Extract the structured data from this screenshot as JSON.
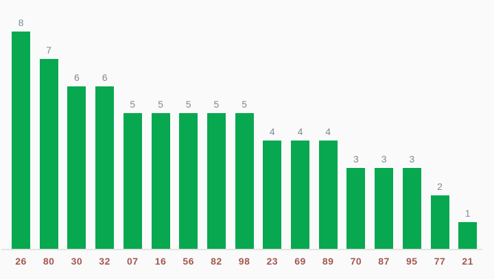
{
  "chart_data": {
    "type": "bar",
    "title": "",
    "xlabel": "",
    "ylabel": "",
    "categories": [
      "26",
      "80",
      "30",
      "32",
      "07",
      "16",
      "56",
      "82",
      "98",
      "23",
      "69",
      "89",
      "70",
      "87",
      "95",
      "77",
      "21"
    ],
    "values": [
      8,
      7,
      6,
      6,
      5,
      5,
      5,
      5,
      5,
      4,
      4,
      4,
      3,
      3,
      3,
      2,
      1
    ],
    "ylim": [
      0,
      8
    ],
    "grid": false,
    "legend": "none",
    "value_labels_shown": true,
    "colors": {
      "bar": "#07a850",
      "value_label": "#7b8a94",
      "category_label": "#a3574f",
      "axis_line": "#e3e3e3",
      "background": "#fafafa"
    }
  }
}
